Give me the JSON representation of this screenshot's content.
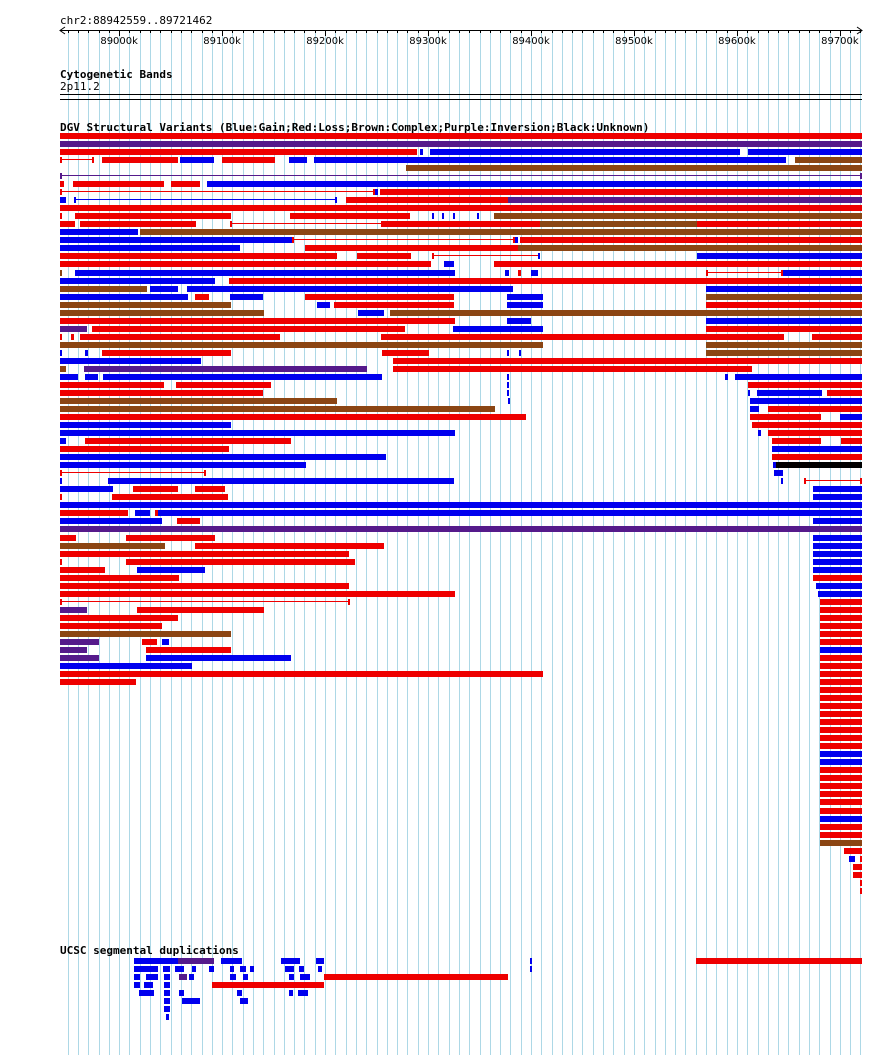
{
  "header": {
    "coordinates": "chr2:88942559..89721462",
    "axis": {
      "start": 88942559,
      "end": 89721462,
      "tick_labels": [
        "89000k",
        "89100k",
        "89200k",
        "89300k",
        "89400k",
        "89500k",
        "89600k",
        "89700k"
      ]
    }
  },
  "tracks": {
    "cytoband": {
      "title": "Cytogenetic Bands",
      "band": "2p11.2"
    },
    "dgv": {
      "title": "DGV Structural Variants (Blue:Gain;Red:Loss;Brown:Complex;Purple:Inversion;Black:Unknown)"
    },
    "segdup": {
      "title": "UCSC segmental duplications"
    }
  },
  "colors": {
    "gain": "#0000ee",
    "loss": "#ee0000",
    "complex": "#8b4513",
    "inversion": "#551a8b",
    "unknown": "#000000",
    "grid": "#add8e6"
  }
}
